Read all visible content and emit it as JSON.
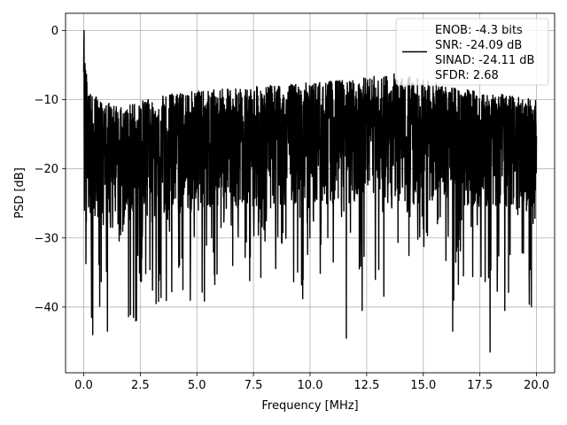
{
  "chart_data": {
    "type": "line",
    "xlabel": "Frequency [MHz]",
    "ylabel": "PSD [dB]",
    "xlim": [
      -0.8,
      20.8
    ],
    "ylim": [
      -49.5,
      2.5
    ],
    "xticks": [
      0.0,
      2.5,
      5.0,
      7.5,
      10.0,
      12.5,
      15.0,
      17.5,
      20.0
    ],
    "xtick_labels": [
      "0.0",
      "2.5",
      "5.0",
      "7.5",
      "10.0",
      "12.5",
      "15.0",
      "17.5",
      "20.0"
    ],
    "yticks": [
      0,
      -10,
      -20,
      -30,
      -40
    ],
    "ytick_labels": [
      "0",
      "−10",
      "−20",
      "−30",
      "−40"
    ],
    "grid": true,
    "legend_position": "upper right",
    "line_color": "#000000",
    "series": [
      {
        "style": "noise-trace",
        "x_range": [
          0.0,
          20.0
        ],
        "envelope_max": [
          [
            0.0,
            -2
          ],
          [
            0.05,
            0
          ],
          [
            0.2,
            -9
          ],
          [
            1.5,
            -11
          ],
          [
            4.0,
            -9
          ],
          [
            8.0,
            -8
          ],
          [
            12.0,
            -7
          ],
          [
            14.0,
            -6
          ],
          [
            16.0,
            -8
          ],
          [
            20.0,
            -10
          ]
        ],
        "envelope_mid": [
          [
            0.0,
            -18
          ],
          [
            2.0,
            -19
          ],
          [
            5.0,
            -16
          ],
          [
            10.0,
            -15
          ],
          [
            15.0,
            -15
          ],
          [
            20.0,
            -16
          ]
        ],
        "notable_minima": [
          [
            0.4,
            -44
          ],
          [
            0.35,
            -41.5
          ],
          [
            1.05,
            -43.5
          ],
          [
            2.2,
            -41.5
          ],
          [
            2.3,
            -42
          ],
          [
            3.2,
            -39.5
          ],
          [
            11.6,
            -44.5
          ],
          [
            12.3,
            -40.5
          ],
          [
            16.3,
            -43.5
          ],
          [
            17.95,
            -46.5
          ],
          [
            18.6,
            -40.5
          ]
        ]
      }
    ],
    "legend": {
      "lines": [
        "ENOB: -4.3 bits",
        "SNR: -24.09 dB",
        "SINAD: -24.11 dB",
        "SFDR: 2.68"
      ]
    }
  }
}
